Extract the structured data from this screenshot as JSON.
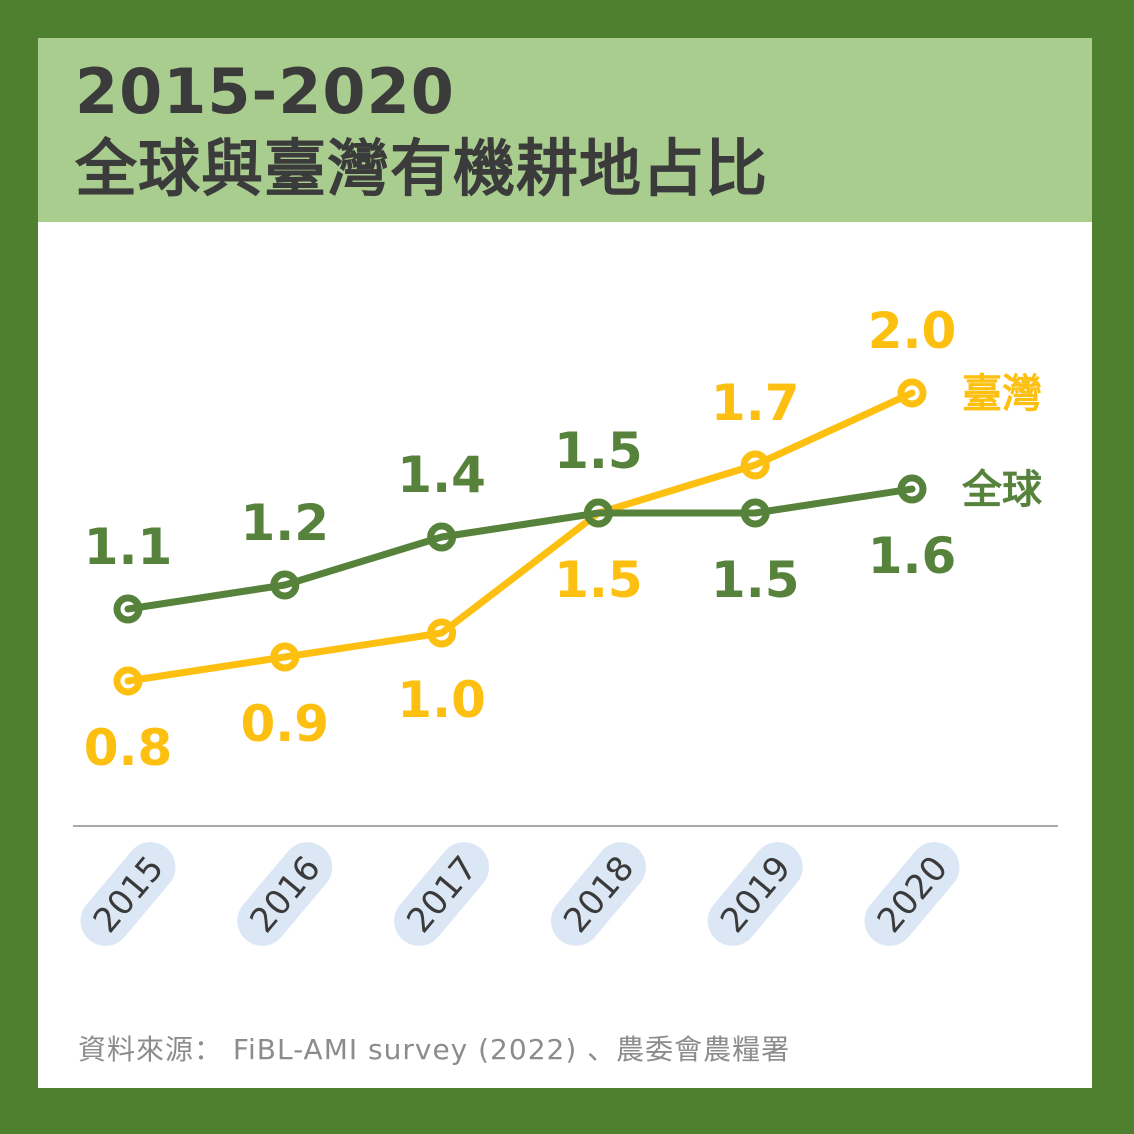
{
  "frame": {
    "border_color": "#4F8030",
    "content_bg": "#FFFFFF"
  },
  "header": {
    "title_line1": "2015-2020",
    "title_line2": "全球與臺灣有機耕地占比",
    "bg_color": "#A9CD8E",
    "text_color": "#3B3B3B"
  },
  "chart_data": {
    "type": "line",
    "title": "2015-2020 全球與臺灣有機耕地占比",
    "categories": [
      "2015",
      "2016",
      "2017",
      "2018",
      "2019",
      "2020"
    ],
    "series": [
      {
        "name": "全球",
        "color": "#56823B",
        "values": [
          1.1,
          1.2,
          1.4,
          1.5,
          1.5,
          1.6
        ],
        "label_sides": [
          "above",
          "above",
          "above",
          "above",
          "below",
          "below"
        ]
      },
      {
        "name": "臺灣",
        "color": "#FDC010",
        "values": [
          0.8,
          0.9,
          1.0,
          1.5,
          1.7,
          2.0
        ],
        "label_sides": [
          "below",
          "below",
          "below",
          "below",
          "above",
          "above"
        ]
      }
    ],
    "xlabel": "",
    "ylabel": "",
    "ylim": [
      0.6,
      2.2
    ],
    "grid": false,
    "y_axis_shown": false,
    "value_label_format": "one-decimal",
    "legend_position": "right-of-last-point",
    "marker_style": "open-circle",
    "axis_line_color": "#AAAAAA",
    "x_tick_style": {
      "pill_bg": "#DCE7F5",
      "text_color": "#3A3A3A",
      "rotation_deg": -50
    }
  },
  "footer": {
    "source_text": "資料來源： FiBL-AMI survey (2022) 、農委會農糧署",
    "text_color": "#8C8C8C"
  }
}
